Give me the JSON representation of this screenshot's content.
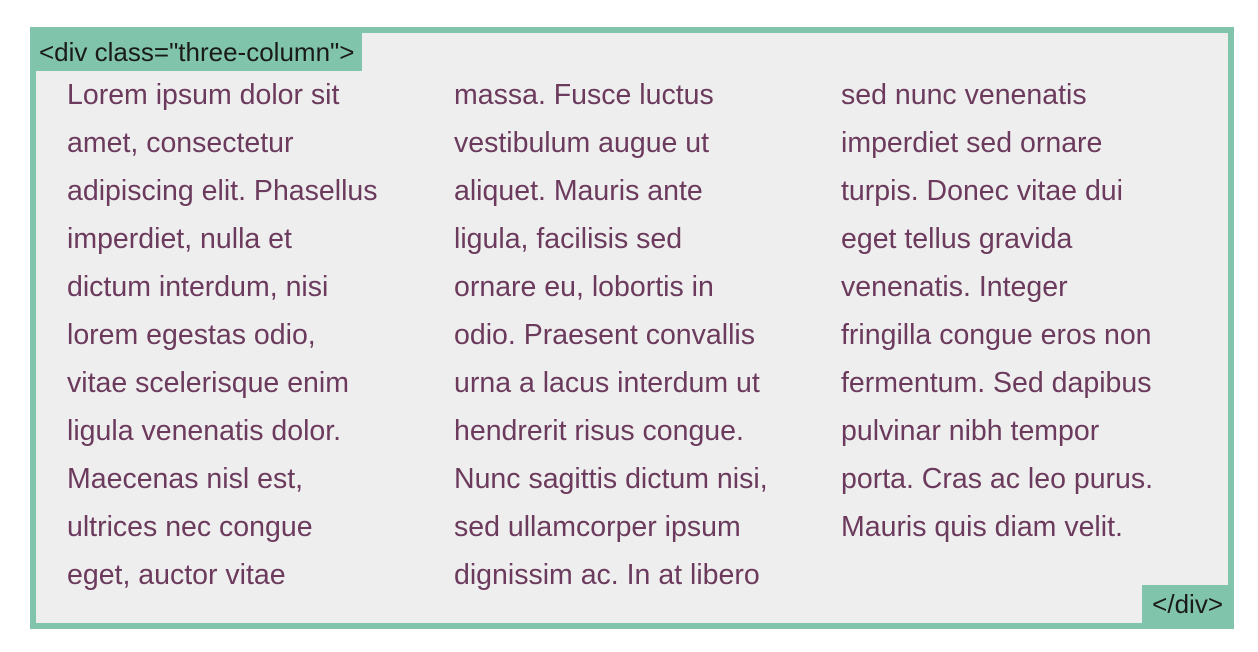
{
  "tags": {
    "open": "<div class=\"three-column\">",
    "close": "</div>"
  },
  "columns": [
    {
      "lines": [
        "Lorem ipsum dolor sit",
        "amet, consectetur",
        "adipiscing elit. Phasellus",
        "imperdiet, nulla et",
        "dictum interdum, nisi",
        "lorem egestas odio,",
        "vitae scelerisque enim",
        "ligula venenatis dolor.",
        "Maecenas nisl est,",
        "ultrices nec congue",
        "eget, auctor vitae"
      ]
    },
    {
      "lines": [
        "massa. Fusce luctus",
        "vestibulum augue ut",
        "aliquet. Mauris ante",
        "ligula, facilisis sed",
        "ornare eu, lobortis in",
        "odio. Praesent convallis",
        "urna a lacus interdum ut",
        "hendrerit risus congue.",
        "Nunc sagittis dictum nisi,",
        "sed ullamcorper ipsum",
        "dignissim ac. In at libero"
      ]
    },
    {
      "lines": [
        "sed nunc venenatis",
        "imperdiet sed ornare",
        "turpis. Donec vitae dui",
        "eget tellus gravida",
        "venenatis. Integer",
        "fringilla congue eros non",
        "fermentum. Sed dapibus",
        "pulvinar nibh tempor",
        "porta. Cras ac leo purus.",
        "Mauris quis diam velit."
      ]
    }
  ],
  "colors": {
    "border": "#80c4ab",
    "background": "#eeeeee",
    "text": "#6b3a5c"
  }
}
